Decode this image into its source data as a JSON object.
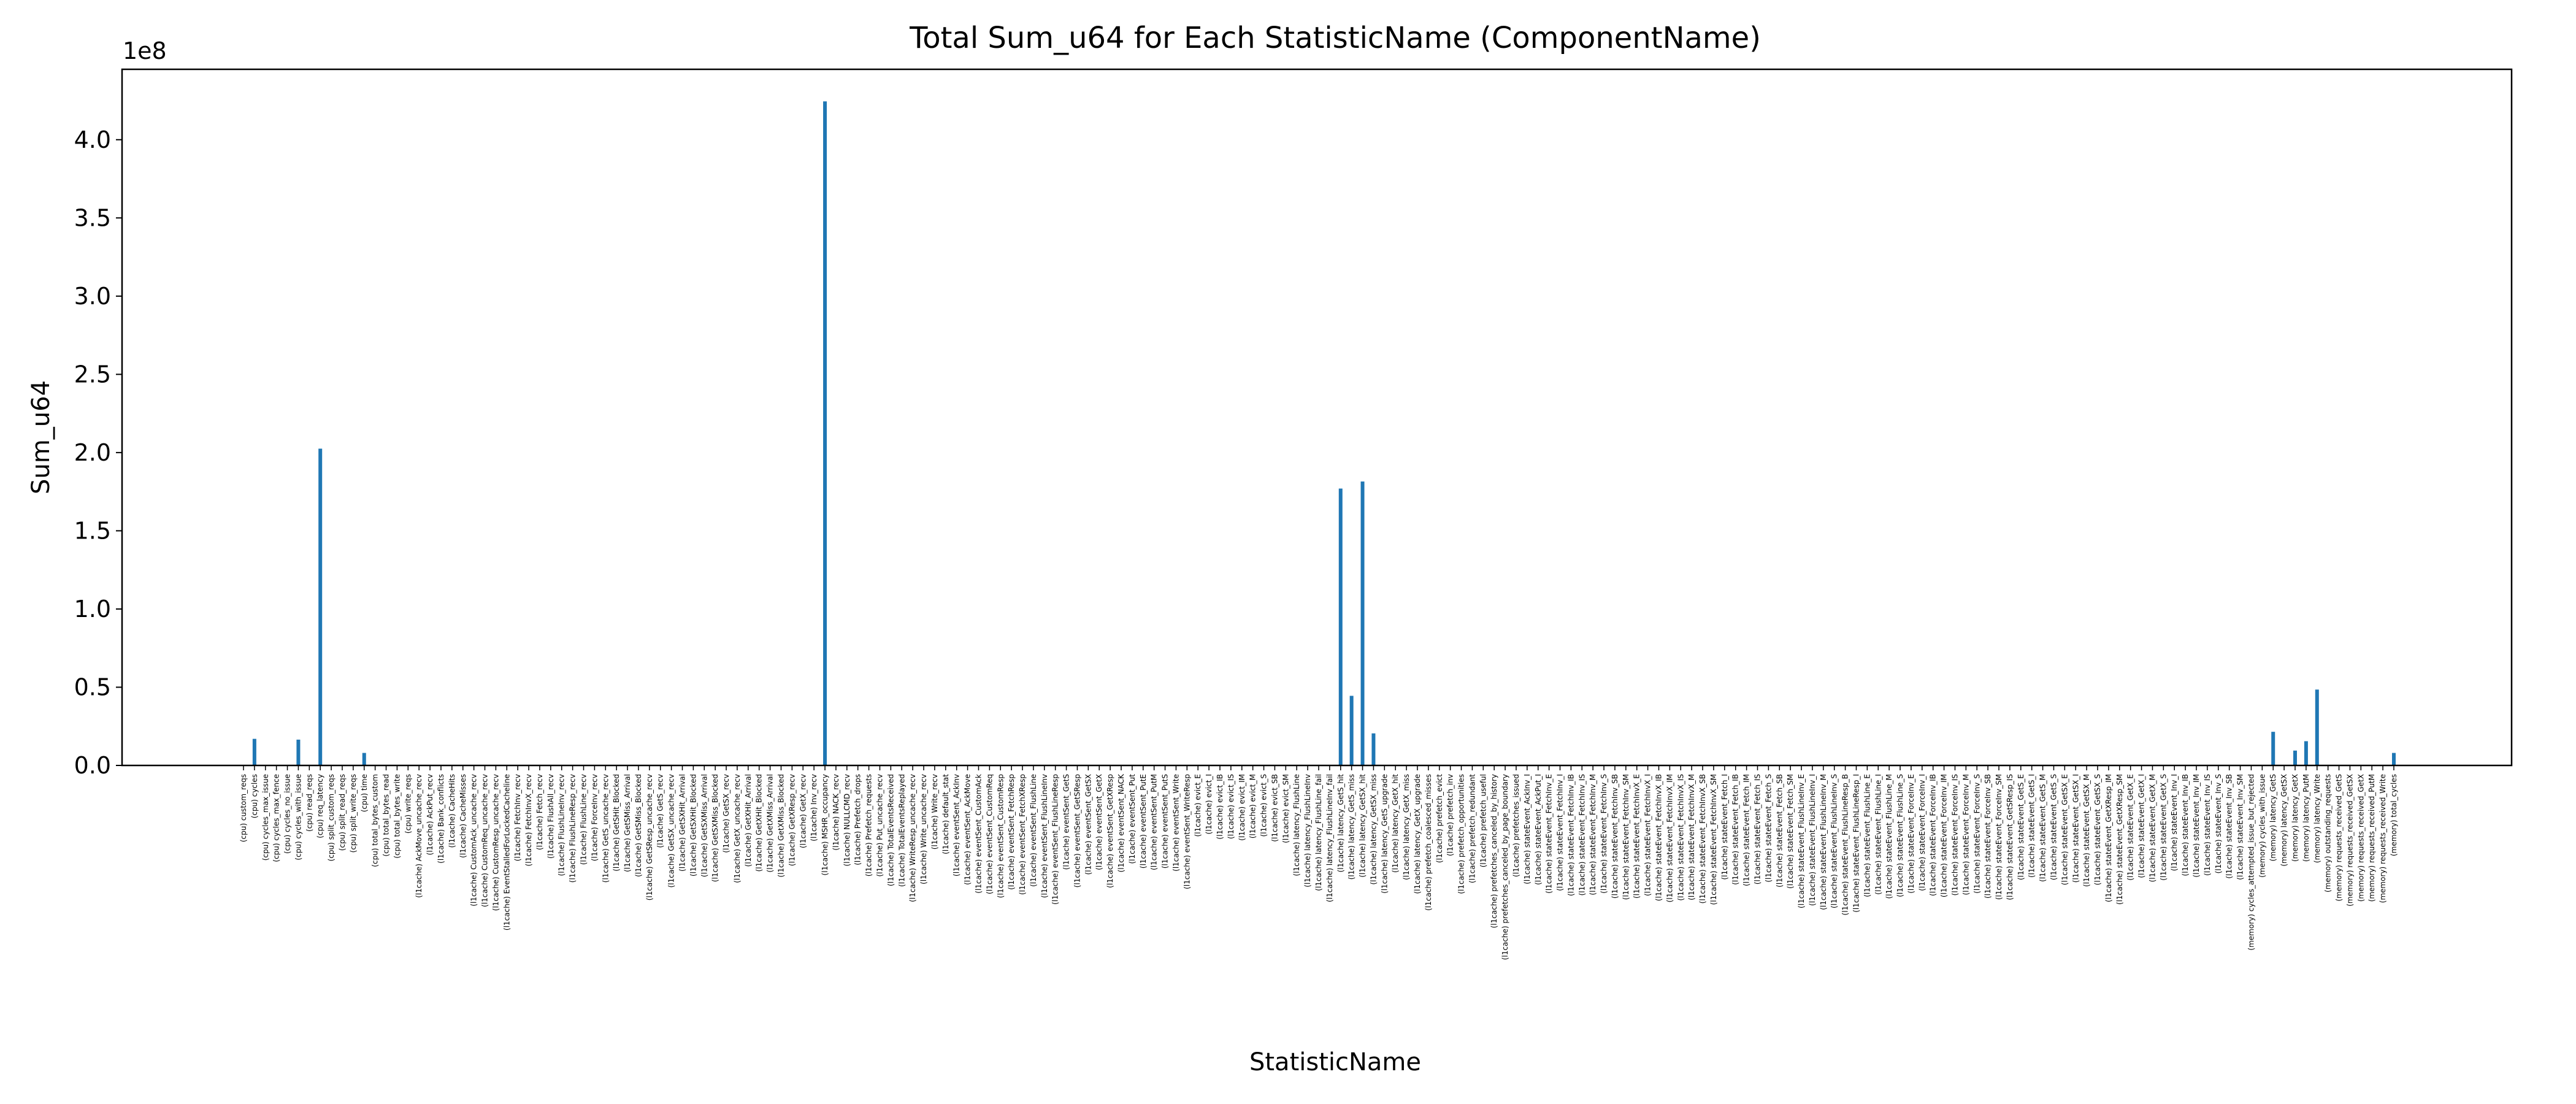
{
  "chart_data": {
    "type": "bar",
    "title": "Total Sum_u64 for Each StatisticName (ComponentName)",
    "xlabel": "StatisticName",
    "ylabel": "Sum_u64",
    "y_offset_label": "1e8",
    "ylim": [
      0,
      445000000
    ],
    "yticks": [
      0,
      50000000,
      100000000,
      150000000,
      200000000,
      250000000,
      300000000,
      350000000,
      400000000
    ],
    "ytick_labels": [
      "0.0",
      "0.5",
      "1.0",
      "1.5",
      "2.0",
      "2.5",
      "3.0",
      "3.5",
      "4.0"
    ],
    "bar_color": "#1f77b4",
    "grid": false,
    "legend": "none",
    "categories": [
      "(cpu) custom_reqs",
      "(cpu) cycles",
      "(cpu) cycles_max_issue",
      "(cpu) cycles_max_fence",
      "(cpu) cycles_no_issue",
      "(cpu) cycles_with_issue",
      "(cpu) read_reqs",
      "(cpu) req_latency",
      "(cpu) split_custom_reqs",
      "(cpu) split_read_reqs",
      "(cpu) split_write_reqs",
      "(cpu) time",
      "(cpu) total_bytes_custom",
      "(cpu) total_bytes_read",
      "(cpu) total_bytes_write",
      "(cpu) write_reqs",
      "(l1cache) AckMove_uncache_recv",
      "(l1cache) AckPut_recv",
      "(l1cache) Bank_conflicts",
      "(l1cache) CacheHits",
      "(l1cache) CacheMisses",
      "(l1cache) CustomAck_uncache_recv",
      "(l1cache) CustomReq_uncache_recv",
      "(l1cache) CustomResp_uncache_recv",
      "(l1cache) EventStalledForLockedCacheline",
      "(l1cache) FetchInv_recv",
      "(l1cache) FetchInvX_recv",
      "(l1cache) Fetch_recv",
      "(l1cache) FlushAll_recv",
      "(l1cache) FlushLineInv_recv",
      "(l1cache) FlushLineResp_recv",
      "(l1cache) FlushLine_recv",
      "(l1cache) ForceInv_recv",
      "(l1cache) GetS_uncache_recv",
      "(l1cache) GetSHit_Blocked",
      "(l1cache) GetSMiss_Arrival",
      "(l1cache) GetSMiss_Blocked",
      "(l1cache) GetSResp_uncache_recv",
      "(l1cache) GetS_recv",
      "(l1cache) GetSX_uncache_recv",
      "(l1cache) GetSXHit_Arrival",
      "(l1cache) GetSXHit_Blocked",
      "(l1cache) GetSXMiss_Arrival",
      "(l1cache) GetSXMiss_Blocked",
      "(l1cache) GetSX_recv",
      "(l1cache) GetX_uncache_recv",
      "(l1cache) GetXHit_Arrival",
      "(l1cache) GetXHit_Blocked",
      "(l1cache) GetXMiss_Arrival",
      "(l1cache) GetXMiss_Blocked",
      "(l1cache) GetXResp_recv",
      "(l1cache) GetX_recv",
      "(l1cache) Inv_recv",
      "(l1cache) MSHR_occupancy",
      "(l1cache) NACK_recv",
      "(l1cache) NULLCMD_recv",
      "(l1cache) Prefetch_drops",
      "(l1cache) Prefetch_requests",
      "(l1cache) Put_uncache_recv",
      "(l1cache) TotalEventsReceived",
      "(l1cache) TotalEventsReplayed",
      "(l1cache) WriteResp_uncache_recv",
      "(l1cache) Write_uncache_recv",
      "(l1cache) Write_recv",
      "(l1cache) default_stat",
      "(l1cache) eventSent_AckInv",
      "(l1cache) eventSent_AckMove",
      "(l1cache) eventSent_CustomAck",
      "(l1cache) eventSent_CustomReq",
      "(l1cache) eventSent_CustomResp",
      "(l1cache) eventSent_FetchResp",
      "(l1cache) eventSent_FetchXResp",
      "(l1cache) eventSent_FlushLine",
      "(l1cache) eventSent_FlushLineInv",
      "(l1cache) eventSent_FlushLineResp",
      "(l1cache) eventSent_GetS",
      "(l1cache) eventSent_GetSResp",
      "(l1cache) eventSent_GetSX",
      "(l1cache) eventSent_GetX",
      "(l1cache) eventSent_GetXResp",
      "(l1cache) eventSent_NACK",
      "(l1cache) eventSent_Put",
      "(l1cache) eventSent_PutE",
      "(l1cache) eventSent_PutM",
      "(l1cache) eventSent_PutS",
      "(l1cache) eventSent_Write",
      "(l1cache) eventSent_WriteResp",
      "(l1cache) evict_E",
      "(l1cache) evict_I",
      "(l1cache) evict_IB",
      "(l1cache) evict_IS",
      "(l1cache) evict_IM",
      "(l1cache) evict_M",
      "(l1cache) evict_S",
      "(l1cache) evict_SB",
      "(l1cache) evict_SM",
      "(l1cache) latency_FlushLine",
      "(l1cache) latency_FlushLineInv",
      "(l1cache) latency_FlushLine_fail",
      "(l1cache) latency_FlushLineInv_fail",
      "(l1cache) latency_GetS_hit",
      "(l1cache) latency_GetS_miss",
      "(l1cache) latency_GetSX_hit",
      "(l1cache) latency_GetSX_miss",
      "(l1cache) latency_GetS_upgrade",
      "(l1cache) latency_GetX_hit",
      "(l1cache) latency_GetX_miss",
      "(l1cache) latency_GetX_upgrade",
      "(l1cache) prefetch_coalesced_misses",
      "(l1cache) prefetch_evict",
      "(l1cache) prefetch_inv",
      "(l1cache) prefetch_opportunities",
      "(l1cache) prefetch_redundant",
      "(l1cache) prefetch_useful",
      "(l1cache) prefetches_canceled_by_history",
      "(l1cache) prefetches_canceled_by_page_boundary",
      "(l1cache) prefetches_issued",
      "(l1cache) stateEvent_AckInv_I",
      "(l1cache) stateEvent_AckPut_I",
      "(l1cache) stateEvent_FetchInv_E",
      "(l1cache) stateEvent_FetchInv_I",
      "(l1cache) stateEvent_FetchInv_IB",
      "(l1cache) stateEvent_FetchInv_IS",
      "(l1cache) stateEvent_FetchInv_M",
      "(l1cache) stateEvent_FetchInv_S",
      "(l1cache) stateEvent_FetchInv_SB",
      "(l1cache) stateEvent_FetchInv_SM",
      "(l1cache) stateEvent_FetchInvX_E",
      "(l1cache) stateEvent_FetchInvX_I",
      "(l1cache) stateEvent_FetchInvX_IB",
      "(l1cache) stateEvent_FetchInvX_IM",
      "(l1cache) stateEvent_FetchInvX_IS",
      "(l1cache) stateEvent_FetchInvX_M",
      "(l1cache) stateEvent_FetchInvX_SB",
      "(l1cache) stateEvent_FetchInvX_SM",
      "(l1cache) stateEvent_Fetch_I",
      "(l1cache) stateEvent_Fetch_IB",
      "(l1cache) stateEvent_Fetch_IM",
      "(l1cache) stateEvent_Fetch_IS",
      "(l1cache) stateEvent_Fetch_S",
      "(l1cache) stateEvent_Fetch_SB",
      "(l1cache) stateEvent_Fetch_SM",
      "(l1cache) stateEvent_FlushLineInv_E",
      "(l1cache) stateEvent_FlushLineInv_I",
      "(l1cache) stateEvent_FlushLineInv_M",
      "(l1cache) stateEvent_FlushLineInv_S",
      "(l1cache) stateEvent_FlushLineResp_B",
      "(l1cache) stateEvent_FlushLineResp_I",
      "(l1cache) stateEvent_FlushLine_E",
      "(l1cache) stateEvent_FlushLine_I",
      "(l1cache) stateEvent_FlushLine_M",
      "(l1cache) stateEvent_FlushLine_S",
      "(l1cache) stateEvent_ForceInv_E",
      "(l1cache) stateEvent_ForceInv_I",
      "(l1cache) stateEvent_ForceInv_IB",
      "(l1cache) stateEvent_ForceInv_IM",
      "(l1cache) stateEvent_ForceInv_IS",
      "(l1cache) stateEvent_ForceInv_M",
      "(l1cache) stateEvent_ForceInv_S",
      "(l1cache) stateEvent_ForceInv_SB",
      "(l1cache) stateEvent_ForceInv_SM",
      "(l1cache) stateEvent_GetSResp_IS",
      "(l1cache) stateEvent_GetS_E",
      "(l1cache) stateEvent_GetS_I",
      "(l1cache) stateEvent_GetS_M",
      "(l1cache) stateEvent_GetS_S",
      "(l1cache) stateEvent_GetSX_E",
      "(l1cache) stateEvent_GetSX_I",
      "(l1cache) stateEvent_GetSX_M",
      "(l1cache) stateEvent_GetSX_S",
      "(l1cache) stateEvent_GetXResp_IM",
      "(l1cache) stateEvent_GetXResp_SM",
      "(l1cache) stateEvent_GetX_E",
      "(l1cache) stateEvent_GetX_I",
      "(l1cache) stateEvent_GetX_M",
      "(l1cache) stateEvent_GetX_S",
      "(l1cache) stateEvent_Inv_I",
      "(l1cache) stateEvent_Inv_IB",
      "(l1cache) stateEvent_Inv_IM",
      "(l1cache) stateEvent_Inv_IS",
      "(l1cache) stateEvent_Inv_S",
      "(l1cache) stateEvent_Inv_SB",
      "(l1cache) stateEvent_Inv_SM",
      "(memory) cycles_attempted_issue_but_rejected",
      "(memory) cycles_with_issue",
      "(memory) latency_GetS",
      "(memory) latency_GetSX",
      "(memory) latency_GetX",
      "(memory) latency_PutM",
      "(memory) latency_Write",
      "(memory) outstanding_requests",
      "(memory) requests_received_GetS",
      "(memory) requests_received_GetSX",
      "(memory) requests_received_GetX",
      "(memory) requests_received_PutM",
      "(memory) requests_received_Write",
      "(memory) total_cycles"
    ],
    "values": [
      0,
      17000000,
      0,
      0,
      0,
      16500000,
      0,
      202500000,
      0,
      0,
      0,
      8000000,
      0,
      0,
      0,
      0,
      0,
      0,
      0,
      0,
      0,
      0,
      0,
      0,
      0,
      0,
      0,
      0,
      0,
      0,
      0,
      0,
      0,
      0,
      0,
      0,
      0,
      0,
      0,
      0,
      0,
      0,
      0,
      0,
      0,
      0,
      0,
      0,
      0,
      0,
      0,
      0,
      0,
      424500000,
      0,
      0,
      0,
      0,
      0,
      0,
      0,
      0,
      0,
      0,
      0,
      0,
      0,
      0,
      0,
      0,
      0,
      0,
      0,
      0,
      0,
      0,
      0,
      0,
      0,
      0,
      0,
      0,
      0,
      0,
      0,
      0,
      0,
      0,
      0,
      0,
      0,
      0,
      0,
      0,
      0,
      0,
      0,
      0,
      0,
      0,
      177000000,
      44500000,
      181500000,
      20500000,
      0,
      0,
      0,
      0,
      0,
      0,
      0,
      0,
      0,
      0,
      0,
      0,
      0,
      0,
      0,
      0,
      0,
      0,
      0,
      0,
      0,
      0,
      0,
      0,
      0,
      0,
      0,
      0,
      0,
      0,
      0,
      0,
      0,
      0,
      0,
      0,
      0,
      0,
      0,
      0,
      0,
      0,
      0,
      0,
      0,
      0,
      0,
      0,
      0,
      0,
      0,
      0,
      0,
      0,
      0,
      0,
      0,
      0,
      0,
      0,
      0,
      0,
      0,
      0,
      0,
      0,
      0,
      0,
      0,
      0,
      0,
      0,
      0,
      0,
      0,
      0,
      0,
      0,
      0,
      0,
      0,
      21500000,
      0,
      9500000,
      15500000,
      48500000,
      0,
      0,
      0,
      0,
      0,
      0,
      8000000
    ]
  }
}
